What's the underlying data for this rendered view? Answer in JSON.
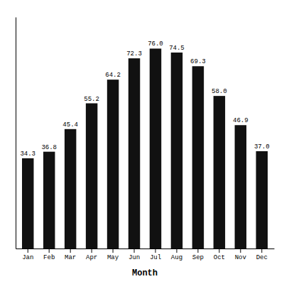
{
  "chart_data": {
    "type": "bar",
    "categories": [
      "Jan",
      "Feb",
      "Mar",
      "Apr",
      "May",
      "Jun",
      "Jul",
      "Aug",
      "Sep",
      "Oct",
      "Nov",
      "Dec"
    ],
    "values": [
      34.3,
      36.8,
      45.4,
      55.2,
      64.2,
      72.3,
      76.0,
      74.5,
      69.3,
      58.0,
      46.9,
      37.0
    ],
    "value_labels": [
      "34.3",
      "36.8",
      "45.4",
      "55.2",
      "64.2",
      "72.3",
      "76.0",
      "74.5",
      "69.3",
      "58.0",
      "46.9",
      "37.0"
    ],
    "color": "#111111",
    "xlabel": "Month",
    "ylim": [
      0,
      88
    ],
    "grid": false,
    "data_labels": true,
    "tick_labels": "x"
  }
}
